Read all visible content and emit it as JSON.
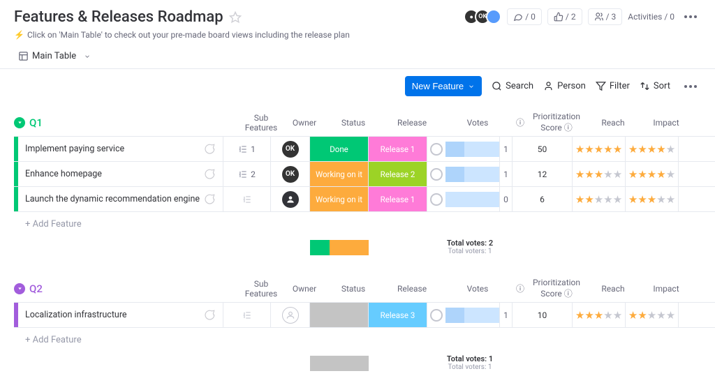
{
  "header": {
    "title": "Features & Releases Roadmap",
    "subtitle": "Click on 'Main Table' to check out your pre-made board views including the release plan",
    "stats": [
      {
        "icon": "conversation",
        "value": "/ 0"
      },
      {
        "icon": "thumbs",
        "value": "/ 2"
      },
      {
        "icon": "members",
        "value": "/ 3"
      },
      {
        "icon": "activity",
        "label": "Activities",
        "value": "/ 0"
      }
    ]
  },
  "tabs": {
    "mainView": "Main Table"
  },
  "toolbar": {
    "newFeature": "New Feature",
    "search": "Search",
    "person": "Person",
    "filter": "Filter",
    "sort": "Sort"
  },
  "columns": {
    "subFeatures": "Sub Features",
    "owner": "Owner",
    "status": "Status",
    "release": "Release",
    "votes": "Votes",
    "score": "Prioritization Score",
    "reach": "Reach",
    "impact": "Impact"
  },
  "colors": {
    "done": "#00c875",
    "workingOnIt": "#fdab3d",
    "grey": "#c4c4c4",
    "rel1": "#ff7bd8",
    "rel2": "#9cd326",
    "rel3": "#66ccff",
    "q1": "#00c875",
    "q2": "#a25ddc"
  },
  "groups": [
    {
      "id": "q1",
      "name": "Q1",
      "colorKey": "q1",
      "rows": [
        {
          "name": "Implement paying service",
          "subCount": 1,
          "owner": {
            "initials": "OK",
            "bg": "#333333",
            "fg": "#ffffff"
          },
          "status": {
            "text": "Done",
            "colorKey": "done"
          },
          "release": {
            "text": "Release 1",
            "colorKey": "rel1"
          },
          "votes": {
            "count": 1,
            "pct": 35
          },
          "score": 50,
          "reach": 5,
          "impact": 4
        },
        {
          "name": "Enhance homepage",
          "subCount": 2,
          "owner": {
            "initials": "OK",
            "bg": "#333333",
            "fg": "#ffffff"
          },
          "status": {
            "text": "Working on it",
            "colorKey": "workingOnIt"
          },
          "release": {
            "text": "Release 2",
            "colorKey": "rel2"
          },
          "votes": {
            "count": 1,
            "pct": 35
          },
          "score": 12,
          "reach": 3,
          "impact": 4
        },
        {
          "name": "Launch the dynamic recommendation engine",
          "subCount": null,
          "owner": {
            "initials": "",
            "bg": "#323338",
            "fg": "#ffffff"
          },
          "status": {
            "text": "Working on it",
            "colorKey": "workingOnIt"
          },
          "release": {
            "text": "Release 1",
            "colorKey": "rel1"
          },
          "votes": {
            "count": 0,
            "pct": 0
          },
          "score": 6,
          "reach": 2,
          "impact": 3
        }
      ],
      "addLabel": "+ Add Feature",
      "statusSummary": [
        {
          "colorKey": "done",
          "pct": 33.3
        },
        {
          "colorKey": "workingOnIt",
          "pct": 66.7
        }
      ],
      "votesSummary": {
        "total": "Total votes: 2",
        "voters": "Total voters: 1"
      }
    },
    {
      "id": "q2",
      "name": "Q2",
      "colorKey": "q2",
      "rows": [
        {
          "name": "Localization infrastructure",
          "subCount": null,
          "owner": null,
          "status": {
            "text": "",
            "colorKey": "grey"
          },
          "release": {
            "text": "Release 3",
            "colorKey": "rel3"
          },
          "votes": {
            "count": 1,
            "pct": 35
          },
          "score": 10,
          "reach": 3,
          "impact": 2
        }
      ],
      "addLabel": "+ Add Feature",
      "statusSummary": [
        {
          "colorKey": "grey",
          "pct": 100
        }
      ],
      "votesSummary": {
        "total": "Total votes: 1",
        "voters": "Total voters: 1"
      }
    }
  ]
}
